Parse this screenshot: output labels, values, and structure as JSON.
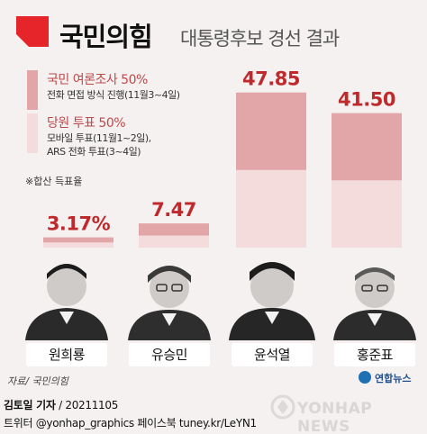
{
  "header": {
    "party_name": "국민의힘",
    "subtitle": "대통령후보 경선 결과"
  },
  "legend": {
    "poll": {
      "title": "국민 여론조사 50%",
      "line1": "전화 면접 방식 진행(11월3~4일)",
      "color": "#e3a6a8"
    },
    "party": {
      "title": "당원 투표 50%",
      "line1": "모바일 투표(11월1~2일),",
      "line2": "ARS 전화 투표(3~4일)",
      "color": "#f4dcdc"
    }
  },
  "footnote": "※합산 득표율",
  "chart_data": {
    "type": "bar",
    "stacked": true,
    "categories": [
      "원희룡",
      "유승민",
      "윤석열",
      "홍준표"
    ],
    "totals": [
      3.17,
      7.47,
      47.85,
      41.5
    ],
    "total_labels": [
      "3.17%",
      "7.47",
      "47.85",
      "41.50"
    ],
    "series": [
      {
        "name": "국민 여론조사 50%",
        "color": "#e3a6a8",
        "values": [
          1.59,
          3.74,
          23.9,
          20.75
        ]
      },
      {
        "name": "당원 투표 50%",
        "color": "#f4dcdc",
        "values": [
          1.58,
          3.73,
          23.95,
          20.75
        ]
      }
    ],
    "ylim": [
      0,
      50
    ]
  },
  "candidates": [
    {
      "name": "원희룡"
    },
    {
      "name": "유승민"
    },
    {
      "name": "윤석열"
    },
    {
      "name": "홍준표"
    }
  ],
  "source": "자료/ 국민의힘",
  "agency": "연합뉴스",
  "byline": {
    "reporter": "김토일 기자",
    "date": "/ 20211105"
  },
  "social": "트위터 @yonhap_graphics  페이스북 tuney.kr/LeYN1",
  "watermark": "YONHAP NEWS",
  "colors": {
    "brand_red": "#e5252a",
    "label_red": "#c0292b",
    "text_accent": "#c0484a"
  }
}
